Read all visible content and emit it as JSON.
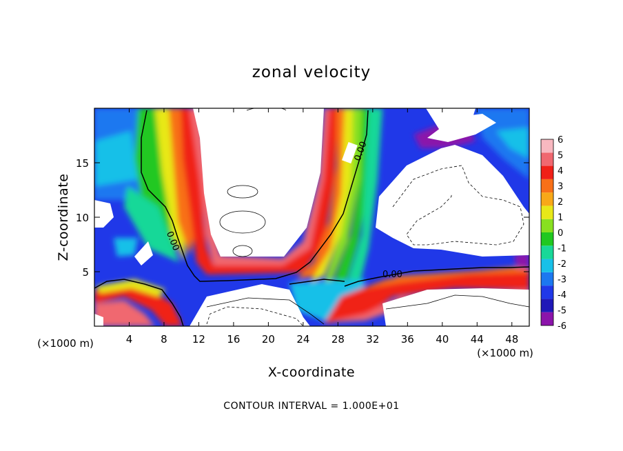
{
  "chart_data": {
    "type": "heatmap",
    "title": "zonal velocity",
    "xlabel": "X-coordinate",
    "ylabel": "Z-coordinate",
    "x_units": "(×1000 m)",
    "x_ticks": [
      4,
      8,
      12,
      16,
      20,
      24,
      28,
      32,
      36,
      40,
      44,
      48
    ],
    "y_ticks": [
      5,
      10,
      15
    ],
    "xlim": [
      0,
      50
    ],
    "ylim": [
      0,
      20
    ],
    "footer": "CONTOUR INTERVAL = 1.000E+01",
    "contour_labels": [
      "0.00",
      "0.00",
      "0.00"
    ],
    "colorbar": {
      "levels": [
        -6,
        -5,
        -4,
        -3,
        -2,
        -1,
        0,
        1,
        2,
        3,
        4,
        5,
        6
      ],
      "level_labels": [
        "-6",
        "-5",
        "-4",
        "-3",
        "-2",
        "-1",
        "0",
        "1",
        "2",
        "3",
        "4",
        "5",
        "6"
      ],
      "colors": [
        "#8b14aa",
        "#2018b8",
        "#2038e8",
        "#1c78f0",
        "#18c0e8",
        "#18d898",
        "#20c820",
        "#88e020",
        "#e8e818",
        "#f8a818",
        "#f87018",
        "#f02018",
        "#f06870",
        "#f8b8c0"
      ]
    }
  }
}
